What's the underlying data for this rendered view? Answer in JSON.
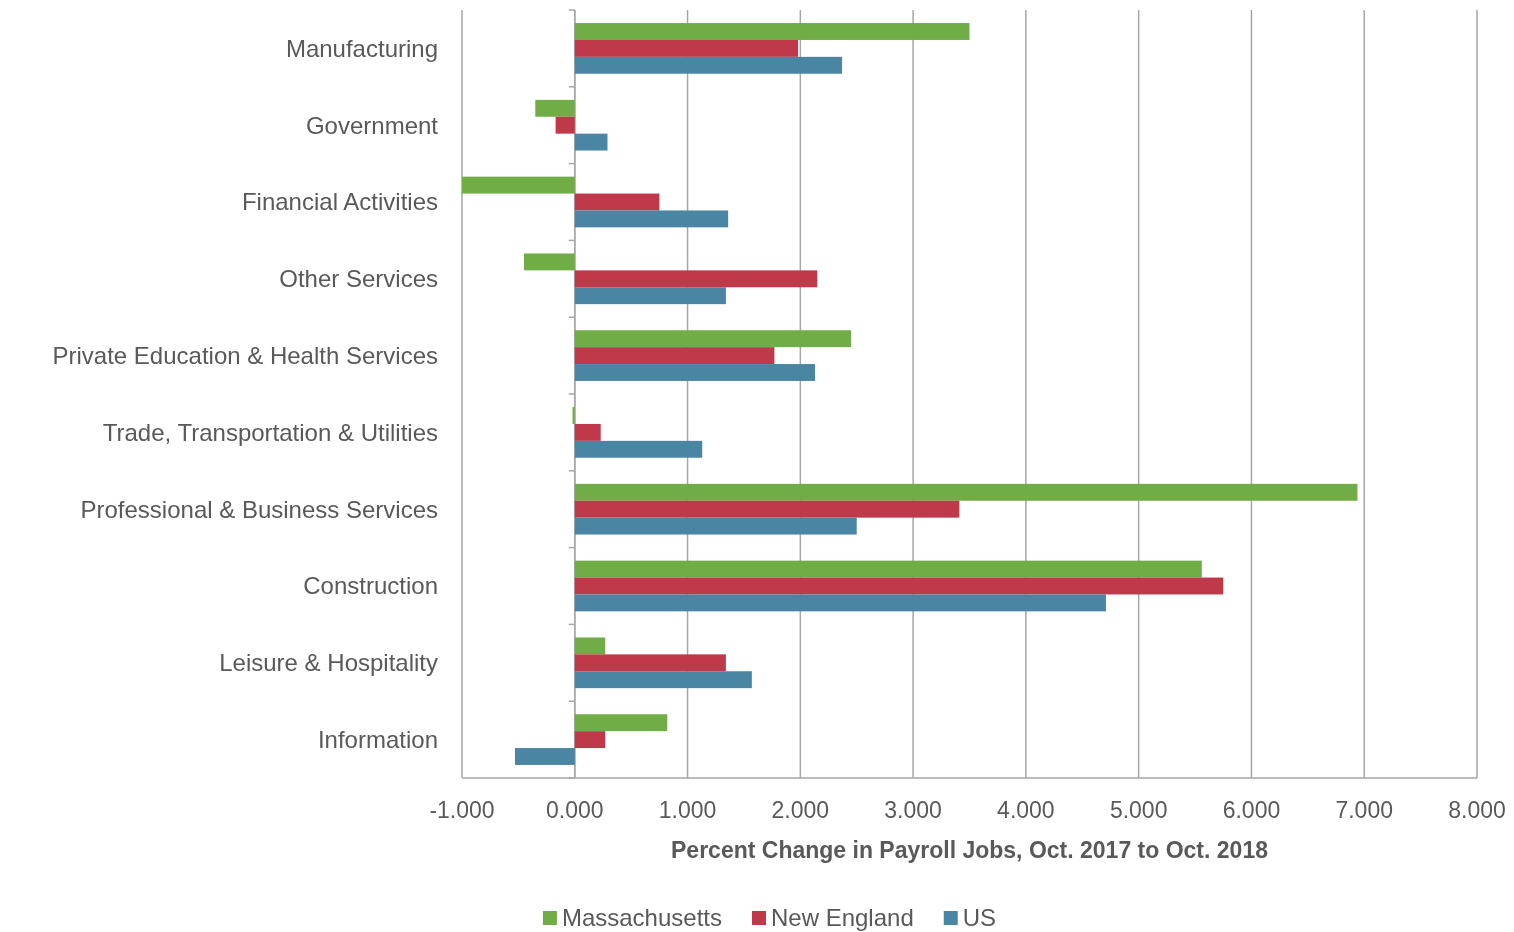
{
  "chart_data": {
    "type": "bar",
    "orientation": "horizontal",
    "xlabel": "Percent Change in Payroll Jobs, Oct. 2017 to Oct. 2018",
    "categories": [
      "Manufacturing",
      "Government",
      "Financial Activities",
      "Other Services",
      "Private Education & Health Services",
      "Trade, Transportation & Utilities",
      "Professional & Business Services",
      "Construction",
      "Leisure & Hospitality",
      "Information"
    ],
    "series": [
      {
        "name": "Massachusetts",
        "color": "#70ad47",
        "values": [
          3.5,
          -0.35,
          -1.0,
          -0.45,
          2.45,
          -0.02,
          6.94,
          5.56,
          0.27,
          0.82
        ]
      },
      {
        "name": "New England",
        "color": "#c0394b",
        "values": [
          1.98,
          -0.17,
          0.75,
          2.15,
          1.77,
          0.23,
          3.41,
          5.75,
          1.34,
          0.27
        ]
      },
      {
        "name": "US",
        "color": "#4a86a3",
        "values": [
          2.37,
          0.29,
          1.36,
          1.34,
          2.13,
          1.13,
          2.5,
          4.71,
          1.57,
          -0.53
        ]
      }
    ],
    "xlim": [
      -1,
      8
    ],
    "xticks": [
      {
        "value": -1,
        "label": "-1.000"
      },
      {
        "value": 0,
        "label": "0.000"
      },
      {
        "value": 1,
        "label": "1.000"
      },
      {
        "value": 2,
        "label": "2.000"
      },
      {
        "value": 3,
        "label": "3.000"
      },
      {
        "value": 4,
        "label": "4.000"
      },
      {
        "value": 5,
        "label": "5.000"
      },
      {
        "value": 6,
        "label": "6.000"
      },
      {
        "value": 7,
        "label": "7.000"
      },
      {
        "value": 8,
        "label": "8.000"
      }
    ],
    "grid": "x",
    "legend": "bottom"
  }
}
